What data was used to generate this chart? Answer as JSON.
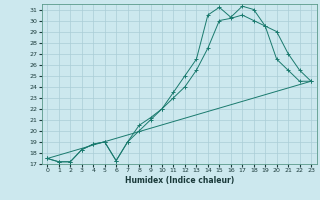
{
  "xlabel": "Humidex (Indice chaleur)",
  "bg_color": "#cce8ee",
  "grid_color": "#aacdd6",
  "line_color": "#1a7a6e",
  "xlim": [
    -0.5,
    23.5
  ],
  "ylim": [
    17,
    31.5
  ],
  "xticks": [
    0,
    1,
    2,
    3,
    4,
    5,
    6,
    7,
    8,
    9,
    10,
    11,
    12,
    13,
    14,
    15,
    16,
    17,
    18,
    19,
    20,
    21,
    22,
    23
  ],
  "yticks": [
    17,
    18,
    19,
    20,
    21,
    22,
    23,
    24,
    25,
    26,
    27,
    28,
    29,
    30,
    31
  ],
  "line1_x": [
    0,
    1,
    2,
    3,
    4,
    5,
    6,
    7,
    8,
    9,
    10,
    11,
    12,
    13,
    14,
    15,
    16,
    17,
    18,
    19,
    20,
    21,
    22,
    23
  ],
  "line1_y": [
    17.5,
    17.2,
    17.2,
    18.3,
    18.8,
    19.0,
    17.3,
    19.0,
    20.5,
    21.2,
    22.0,
    23.5,
    25.0,
    26.5,
    30.5,
    31.2,
    30.3,
    31.3,
    31.0,
    29.5,
    29.0,
    27.0,
    25.5,
    24.5
  ],
  "line2_x": [
    0,
    1,
    2,
    3,
    4,
    5,
    6,
    7,
    8,
    9,
    10,
    11,
    12,
    13,
    14,
    15,
    16,
    17,
    18,
    19,
    20,
    21,
    22,
    23
  ],
  "line2_y": [
    17.5,
    17.2,
    17.2,
    18.3,
    18.8,
    19.0,
    17.3,
    19.0,
    20.0,
    21.0,
    22.0,
    23.0,
    24.0,
    25.5,
    27.5,
    30.0,
    30.2,
    30.5,
    30.0,
    29.5,
    26.5,
    25.5,
    24.5,
    24.5
  ],
  "line3_x": [
    0,
    23
  ],
  "line3_y": [
    17.5,
    24.5
  ]
}
